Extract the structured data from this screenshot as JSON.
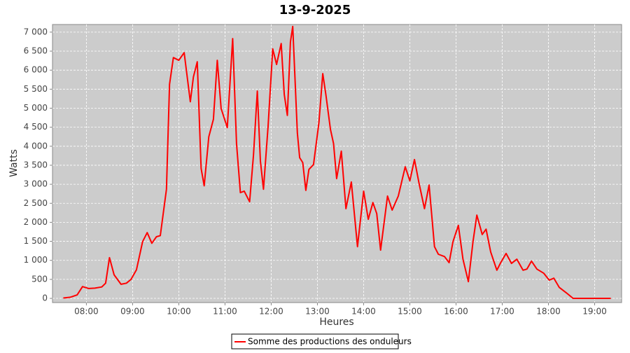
{
  "chart_data": {
    "type": "line",
    "title": "13-9-2025",
    "x_label": "Heures",
    "y_label": "Watts",
    "x": [
      "07:30",
      "07:39",
      "07:48",
      "07:55",
      "08:03",
      "08:11",
      "08:20",
      "08:25",
      "08:30",
      "08:36",
      "08:45",
      "08:52",
      "08:58",
      "09:05",
      "09:13",
      "09:19",
      "09:25",
      "09:31",
      "09:36",
      "09:44",
      "09:48",
      "09:53",
      "10:00",
      "10:07",
      "10:15",
      "10:19",
      "10:24",
      "10:29",
      "10:33",
      "10:39",
      "10:45",
      "10:50",
      "10:55",
      "11:03",
      "11:10",
      "11:15",
      "11:20",
      "11:25",
      "11:32",
      "11:37",
      "11:42",
      "11:46",
      "11:50",
      "11:56",
      "12:02",
      "12:07",
      "12:13",
      "12:17",
      "12:21",
      "12:25",
      "12:28",
      "12:34",
      "12:37",
      "12:41",
      "12:45",
      "12:49",
      "12:55",
      "13:02",
      "13:07",
      "13:11",
      "13:17",
      "13:21",
      "13:25",
      "13:31",
      "13:37",
      "13:44",
      "13:52",
      "14:00",
      "14:06",
      "14:12",
      "14:17",
      "14:22",
      "14:31",
      "14:37",
      "14:45",
      "14:54",
      "15:00",
      "15:06",
      "15:12",
      "15:19",
      "15:25",
      "15:32",
      "15:37",
      "15:45",
      "15:51",
      "15:56",
      "16:03",
      "16:09",
      "16:16",
      "16:22",
      "16:27",
      "16:34",
      "16:39",
      "16:45",
      "16:53",
      "16:58",
      "17:05",
      "17:12",
      "17:19",
      "17:27",
      "17:32",
      "17:38",
      "17:45",
      "17:54",
      "18:01",
      "18:07",
      "18:14",
      "18:23",
      "18:32",
      "18:41",
      "18:55",
      "19:21"
    ],
    "series": [
      {
        "name": "Somme des productions des onduleurs",
        "color": "#ff0000",
        "values": [
          10,
          30,
          90,
          310,
          260,
          270,
          300,
          400,
          1070,
          620,
          370,
          400,
          500,
          750,
          1490,
          1730,
          1450,
          1620,
          1650,
          2870,
          5630,
          6330,
          6260,
          6460,
          5170,
          5820,
          6220,
          3420,
          2960,
          4250,
          4710,
          6260,
          4990,
          4490,
          6830,
          4070,
          2780,
          2820,
          2540,
          3760,
          5450,
          3610,
          2870,
          4530,
          6560,
          6150,
          6700,
          5360,
          4810,
          6740,
          7150,
          4350,
          3700,
          3570,
          2840,
          3390,
          3520,
          4620,
          5910,
          5360,
          4440,
          4070,
          3150,
          3870,
          2360,
          3060,
          1360,
          2820,
          2080,
          2520,
          2230,
          1270,
          2690,
          2320,
          2690,
          3460,
          3090,
          3650,
          3020,
          2360,
          2980,
          1360,
          1160,
          1100,
          940,
          1490,
          1920,
          1030,
          440,
          1490,
          2190,
          1680,
          1820,
          1220,
          740,
          940,
          1180,
          920,
          1030,
          740,
          770,
          980,
          770,
          660,
          480,
          530,
          290,
          150,
          0,
          0,
          0,
          0
        ]
      }
    ],
    "xlim": [
      "07:16",
      "19:35"
    ],
    "xticks": [
      "08:00",
      "09:00",
      "10:00",
      "11:00",
      "12:00",
      "13:00",
      "14:00",
      "15:00",
      "16:00",
      "17:00",
      "18:00",
      "19:00"
    ],
    "ylim": [
      -110,
      7200
    ],
    "yticks": [
      0,
      500,
      {
        "value": 1000,
        "label": "1 000"
      },
      {
        "value": 1500,
        "label": "1 500"
      },
      {
        "value": 2000,
        "label": "2 000"
      },
      {
        "value": 2500,
        "label": "2 500"
      },
      {
        "value": 3000,
        "label": "3 000"
      },
      {
        "value": 3500,
        "label": "3 500"
      },
      {
        "value": 4000,
        "label": "4 000"
      },
      {
        "value": 4500,
        "label": "4 500"
      },
      {
        "value": 5000,
        "label": "5 000"
      },
      {
        "value": 5500,
        "label": "5 500"
      },
      {
        "value": 6000,
        "label": "6 000"
      },
      {
        "value": 6500,
        "label": "6 500"
      },
      {
        "value": 7000,
        "label": "7 000"
      }
    ],
    "grid": true
  }
}
